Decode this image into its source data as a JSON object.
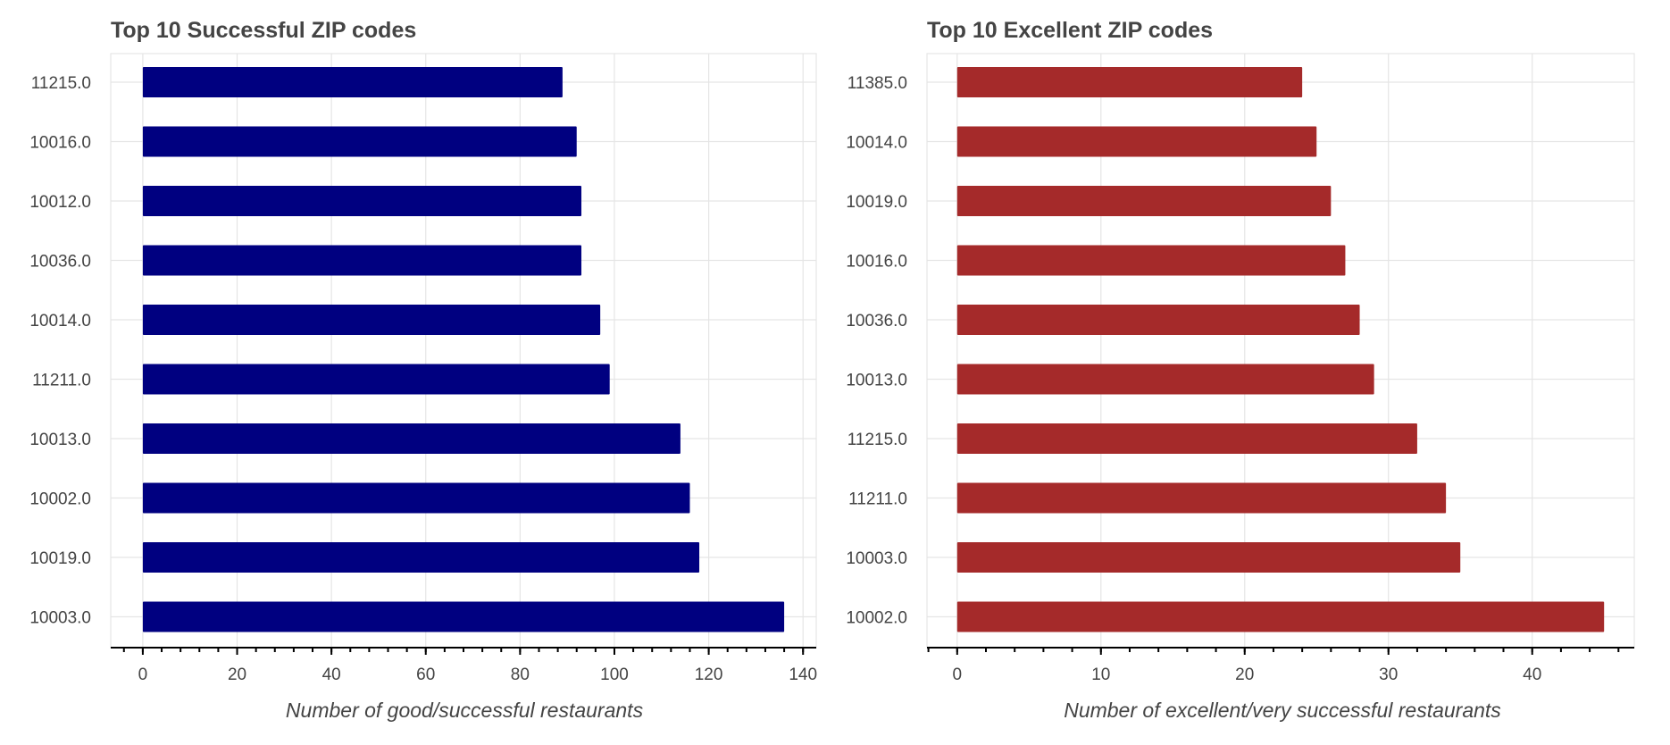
{
  "chart_data": [
    {
      "type": "bar",
      "orientation": "horizontal",
      "title": "Top 10 Successful ZIP codes",
      "xlabel": "Number of good/successful restaurants",
      "ylabel": "",
      "categories": [
        "11215.0",
        "10016.0",
        "10012.0",
        "10036.0",
        "10014.0",
        "11211.0",
        "10013.0",
        "10002.0",
        "10019.0",
        "10003.0"
      ],
      "values": [
        89,
        92,
        93,
        93,
        97,
        99,
        114,
        116,
        118,
        136
      ],
      "xlim": [
        -6.8,
        142.8
      ],
      "xticks": [
        0,
        20,
        40,
        60,
        80,
        100,
        120,
        140
      ],
      "minor_tick_step": 4,
      "grid": true,
      "color": "#000080"
    },
    {
      "type": "bar",
      "orientation": "horizontal",
      "title": "Top 10 Excellent ZIP codes",
      "xlabel": "Number of excellent/very successful restaurants",
      "ylabel": "",
      "categories": [
        "11385.0",
        "10014.0",
        "10019.0",
        "10016.0",
        "10036.0",
        "10013.0",
        "11215.0",
        "11211.0",
        "10003.0",
        "10002.0"
      ],
      "values": [
        24,
        25,
        26,
        27,
        28,
        29,
        32,
        34,
        35,
        45
      ],
      "xlim": [
        -2.1,
        47.1
      ],
      "xticks": [
        0,
        10,
        20,
        30,
        40
      ],
      "minor_tick_step": 2,
      "grid": true,
      "color": "#a52a2a"
    }
  ]
}
